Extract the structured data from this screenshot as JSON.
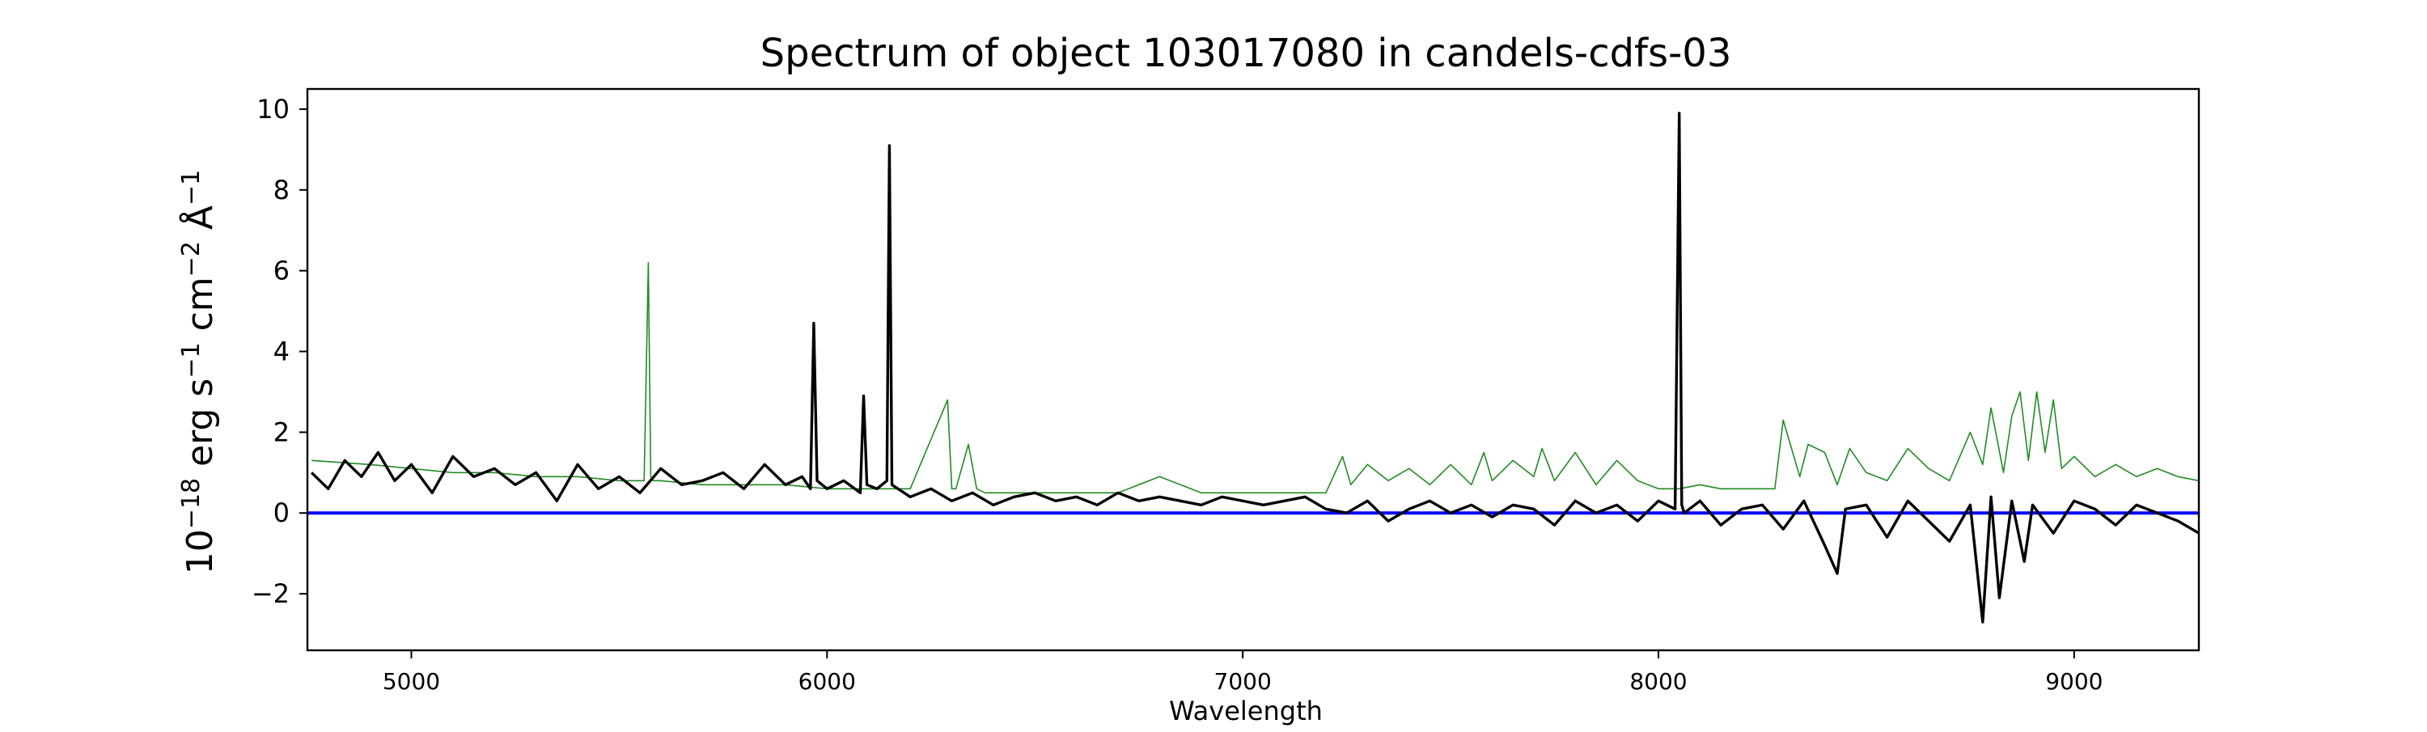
{
  "chart_data": {
    "type": "line",
    "title": "Spectrum of object 103017080 in candels-cdfs-03",
    "xlabel": "Wavelength",
    "ylabel": {
      "base": "10",
      "exp1": "−18",
      "part2": " erg s",
      "exp2": "−1",
      "part3": " cm",
      "exp3": "−2",
      "part4": " Å",
      "exp4": "−1"
    },
    "xlim": [
      4750,
      9300
    ],
    "ylim": [
      -3.4,
      10.5
    ],
    "xticks": [
      5000,
      6000,
      7000,
      8000,
      9000
    ],
    "yticks": [
      -2,
      0,
      2,
      4,
      6,
      8,
      10
    ],
    "xtick_labels": [
      "5000",
      "6000",
      "7000",
      "8000",
      "9000"
    ],
    "ytick_labels": [
      "−2",
      "0",
      "2",
      "4",
      "6",
      "8",
      "10"
    ],
    "grid": false,
    "legend": "none",
    "colors": {
      "flux": "#000000",
      "error": "#228b22",
      "zero": "#0000ff",
      "axes": "#000000"
    },
    "series": [
      {
        "role": "flux",
        "x": [
          4760,
          4800,
          4840,
          4880,
          4920,
          4960,
          5000,
          5050,
          5100,
          5150,
          5200,
          5250,
          5300,
          5350,
          5400,
          5450,
          5500,
          5550,
          5600,
          5650,
          5700,
          5750,
          5800,
          5850,
          5900,
          5940,
          5960,
          5968,
          5976,
          6000,
          6040,
          6080,
          6088,
          6096,
          6120,
          6144,
          6150,
          6156,
          6200,
          6250,
          6300,
          6350,
          6400,
          6450,
          6500,
          6550,
          6600,
          6650,
          6700,
          6750,
          6800,
          6850,
          6900,
          6950,
          7000,
          7050,
          7100,
          7150,
          7200,
          7250,
          7300,
          7350,
          7400,
          7450,
          7500,
          7550,
          7600,
          7650,
          7700,
          7750,
          7800,
          7850,
          7900,
          7950,
          8000,
          8040,
          8050,
          8056,
          8062,
          8100,
          8150,
          8200,
          8250,
          8300,
          8350,
          8400,
          8430,
          8450,
          8500,
          8550,
          8600,
          8650,
          8700,
          8750,
          8780,
          8800,
          8820,
          8850,
          8880,
          8900,
          8950,
          9000,
          9050,
          9100,
          9150,
          9200,
          9250,
          9300
        ],
        "y": [
          1.0,
          0.6,
          1.3,
          0.9,
          1.5,
          0.8,
          1.2,
          0.5,
          1.4,
          0.9,
          1.1,
          0.7,
          1.0,
          0.3,
          1.2,
          0.6,
          0.9,
          0.5,
          1.1,
          0.7,
          0.8,
          1.0,
          0.6,
          1.2,
          0.7,
          0.9,
          0.6,
          4.7,
          0.8,
          0.6,
          0.8,
          0.5,
          2.9,
          0.7,
          0.6,
          0.8,
          9.1,
          0.7,
          0.4,
          0.6,
          0.3,
          0.5,
          0.2,
          0.4,
          0.5,
          0.3,
          0.4,
          0.2,
          0.5,
          0.3,
          0.4,
          0.3,
          0.2,
          0.4,
          0.3,
          0.2,
          0.3,
          0.4,
          0.1,
          0.0,
          0.3,
          -0.2,
          0.1,
          0.3,
          0.0,
          0.2,
          -0.1,
          0.2,
          0.1,
          -0.3,
          0.3,
          0.0,
          0.2,
          -0.2,
          0.3,
          0.1,
          9.9,
          0.2,
          0.0,
          0.3,
          -0.3,
          0.1,
          0.2,
          -0.4,
          0.3,
          -0.8,
          -1.5,
          0.1,
          0.2,
          -0.6,
          0.3,
          -0.2,
          -0.7,
          0.2,
          -2.7,
          0.4,
          -2.1,
          0.3,
          -1.2,
          0.2,
          -0.5,
          0.3,
          0.1,
          -0.3,
          0.2,
          0.0,
          -0.2,
          -0.5
        ]
      },
      {
        "role": "error",
        "x": [
          4760,
          4900,
          5000,
          5100,
          5200,
          5300,
          5400,
          5500,
          5560,
          5570,
          5576,
          5582,
          5600,
          5700,
          5800,
          5900,
          6000,
          6100,
          6200,
          6290,
          6300,
          6310,
          6340,
          6360,
          6380,
          6500,
          6600,
          6700,
          6800,
          6900,
          7000,
          7100,
          7200,
          7240,
          7260,
          7300,
          7350,
          7400,
          7450,
          7500,
          7550,
          7580,
          7600,
          7650,
          7700,
          7720,
          7750,
          7800,
          7850,
          7900,
          7950,
          8000,
          8050,
          8100,
          8150,
          8200,
          8280,
          8300,
          8340,
          8360,
          8400,
          8430,
          8460,
          8500,
          8550,
          8600,
          8650,
          8700,
          8750,
          8780,
          8800,
          8830,
          8850,
          8870,
          8890,
          8910,
          8930,
          8950,
          8970,
          9000,
          9050,
          9100,
          9150,
          9200,
          9250,
          9300
        ],
        "y": [
          1.3,
          1.2,
          1.1,
          1.0,
          1.0,
          0.9,
          0.9,
          0.8,
          0.8,
          6.2,
          0.9,
          0.8,
          0.8,
          0.7,
          0.7,
          0.7,
          0.6,
          0.6,
          0.6,
          2.8,
          0.6,
          0.6,
          1.7,
          0.6,
          0.5,
          0.5,
          0.5,
          0.5,
          0.9,
          0.5,
          0.5,
          0.5,
          0.5,
          1.4,
          0.7,
          1.2,
          0.8,
          1.1,
          0.7,
          1.2,
          0.7,
          1.5,
          0.8,
          1.3,
          0.9,
          1.6,
          0.8,
          1.5,
          0.7,
          1.3,
          0.8,
          0.6,
          0.6,
          0.7,
          0.6,
          0.6,
          0.6,
          2.3,
          0.9,
          1.7,
          1.5,
          0.7,
          1.6,
          1.0,
          0.8,
          1.6,
          1.1,
          0.8,
          2.0,
          1.2,
          2.6,
          1.0,
          2.4,
          3.0,
          1.3,
          3.0,
          1.5,
          2.8,
          1.1,
          1.4,
          0.9,
          1.2,
          0.9,
          1.1,
          0.9,
          0.8
        ]
      },
      {
        "role": "zero",
        "x": [
          4750,
          9300
        ],
        "y": [
          0,
          0
        ]
      }
    ]
  }
}
